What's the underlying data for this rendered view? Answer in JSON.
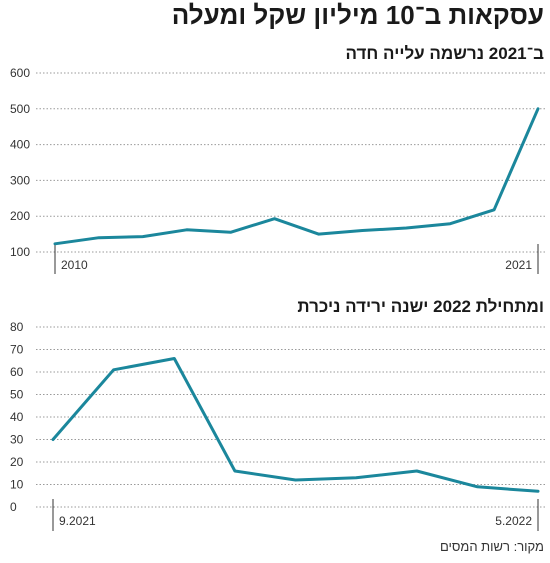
{
  "title": "עסקאות ב־10 מיליון שקל ומעלה",
  "source": "מקור: רשות המסים",
  "colors": {
    "series": "#1b879c",
    "text": "#1a1a1a",
    "grid": "#9a9a9a"
  },
  "chart_data": [
    {
      "type": "line",
      "title": "ב־2021 נרשמה עלייה חדה",
      "ylim": [
        100,
        600
      ],
      "yticks": [
        100,
        200,
        300,
        400,
        500,
        600
      ],
      "x": [
        2010,
        2011,
        2012,
        2013,
        2014,
        2015,
        2016,
        2017,
        2018,
        2019,
        2020,
        2021
      ],
      "xtick_labels": [
        {
          "x": 2010,
          "label": "2010"
        },
        {
          "x": 2021,
          "label": "2021"
        }
      ],
      "series": [
        {
          "values": [
            123,
            140,
            143,
            162,
            155,
            193,
            150,
            160,
            167,
            179,
            218,
            500
          ]
        }
      ],
      "grid": true
    },
    {
      "type": "line",
      "title": "ומתחילת 2022 ישנה ירידה ניכרת",
      "ylim": [
        0,
        80
      ],
      "yticks": [
        0,
        10,
        20,
        30,
        40,
        50,
        60,
        70,
        80
      ],
      "x": [
        "9.2021",
        "10.2021",
        "11.2021",
        "12.2021",
        "1.2022",
        "2.2022",
        "3.2022",
        "4.2022",
        "5.2022"
      ],
      "xtick_labels": [
        {
          "x": "9.2021",
          "label": "9.2021"
        },
        {
          "x": "5.2022",
          "label": "5.2022"
        }
      ],
      "series": [
        {
          "values": [
            30,
            61,
            66,
            16,
            12,
            13,
            16,
            9,
            7
          ]
        }
      ],
      "grid": true
    }
  ]
}
